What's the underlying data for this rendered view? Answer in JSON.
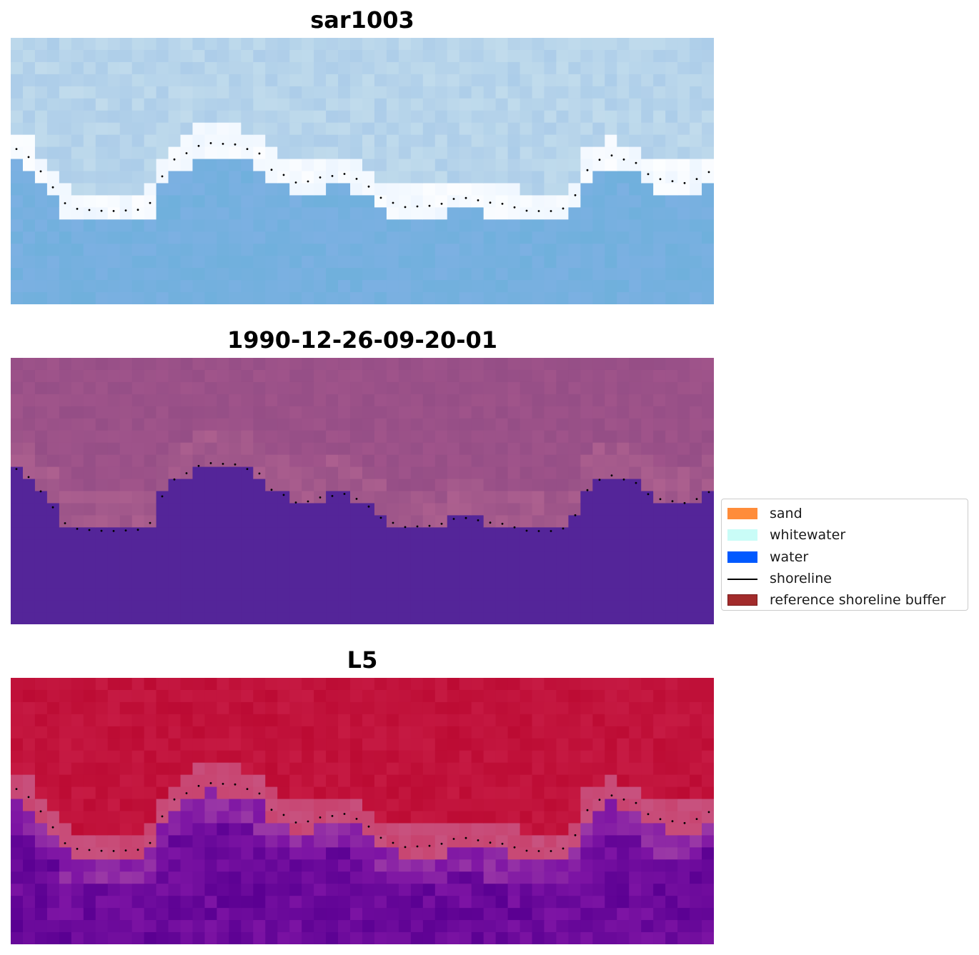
{
  "panels": [
    {
      "title": "sar1003",
      "colors": [
        "#ffffff",
        "#e6f2ff",
        "#cfe6ee",
        "#a6c8e8",
        "#7cb0e2",
        "#6fb0dc"
      ]
    },
    {
      "title": "1990-12-26-09-20-01",
      "colors": [
        "#8f4b84",
        "#a2558b",
        "#b06290",
        "#542599"
      ]
    },
    {
      "title": "L5",
      "colors": [
        "#b9062e",
        "#c91f48",
        "#c8527f",
        "#9a38a6",
        "#7d14a4",
        "#5a0092"
      ]
    }
  ],
  "legend": {
    "items": [
      {
        "label": "sand",
        "color": "#ff8c3a",
        "kind": "patch"
      },
      {
        "label": "whitewater",
        "color": "#c9fcf7",
        "kind": "patch"
      },
      {
        "label": "water",
        "color": "#0059ff",
        "kind": "patch"
      },
      {
        "label": "shoreline",
        "color": "#000000",
        "kind": "line"
      },
      {
        "label": "reference shoreline buffer",
        "color": "#a22b2b",
        "kind": "patch"
      }
    ]
  }
}
